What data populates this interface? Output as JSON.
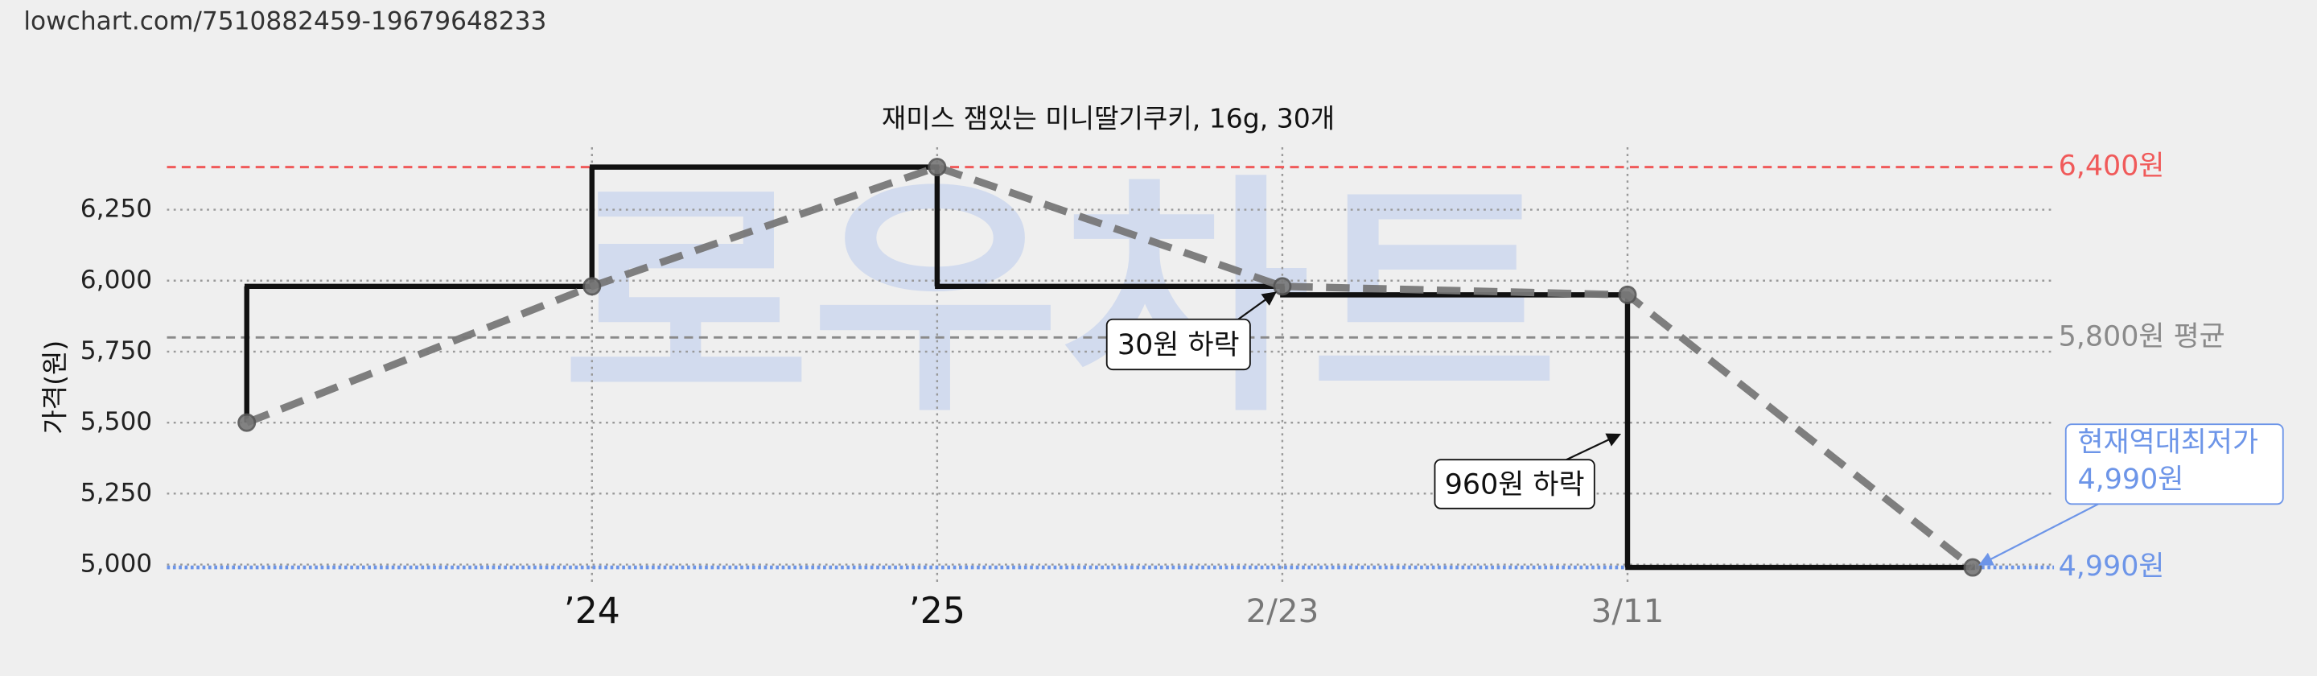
{
  "chart_data": {
    "type": "line",
    "url": "lowchart.com/7510882459-19679648233",
    "title": "재미스 잼있는 미니딸기쿠키, 16g, 30개",
    "ylabel": "가격(원)",
    "watermark": "로우차트",
    "categories": [
      null,
      "’24",
      "’25",
      "2/23",
      "3/11",
      null
    ],
    "values": [
      5500,
      5980,
      6400,
      5980,
      5950,
      4990
    ],
    "color": "#111111",
    "trend_color": "#777777",
    "ylim": [
      4930,
      6470
    ],
    "yticks": [
      {
        "value": 5000,
        "label": "5,000"
      },
      {
        "value": 5250,
        "label": "5,250"
      },
      {
        "value": 5500,
        "label": "5,500"
      },
      {
        "value": 5750,
        "label": "5,750"
      },
      {
        "value": 6000,
        "label": "6,000"
      },
      {
        "value": 6250,
        "label": "6,250"
      }
    ],
    "grid": true,
    "reference_lines": [
      {
        "value": 6400,
        "label": "6,400원",
        "color": "#f05a5a"
      },
      {
        "value": 5800,
        "label": "5,800원 평균",
        "color": "#8a8a8a"
      },
      {
        "value": 4990,
        "label": "4,990원",
        "color": "#6d95e8"
      }
    ],
    "annotations": [
      "30원 하락",
      "960원 하락"
    ],
    "current_low": {
      "title": "현재역대최저가",
      "value_label": "4,990원",
      "color": "#6d95e8"
    }
  }
}
